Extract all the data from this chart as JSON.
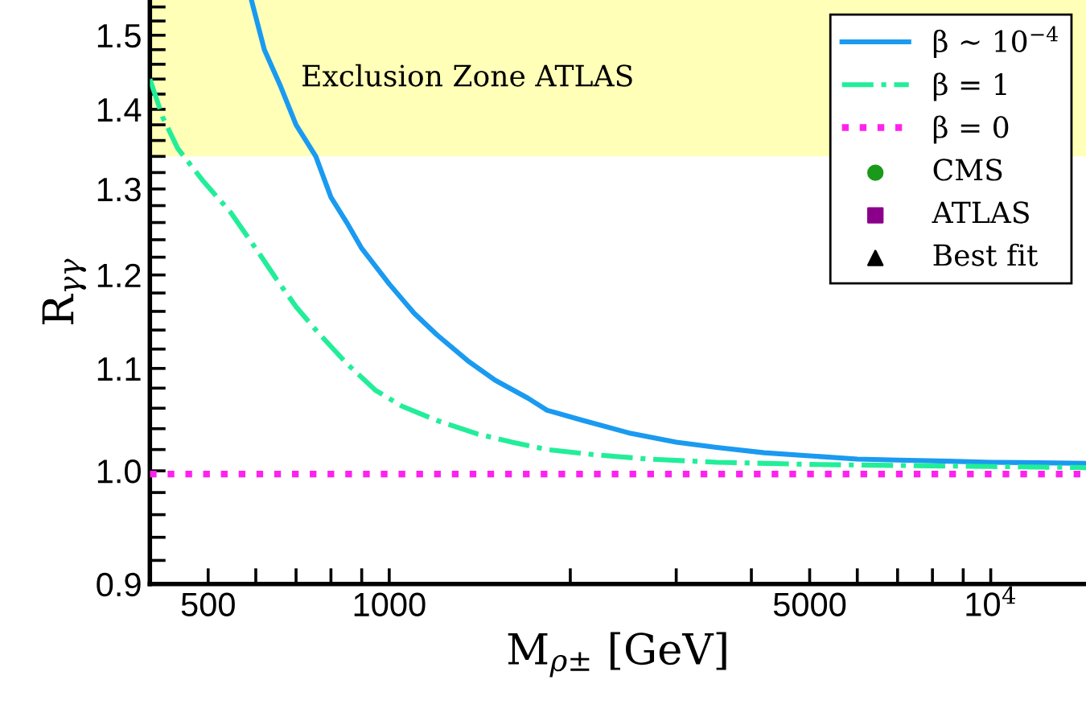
{
  "chart_data": {
    "type": "line",
    "xlabel": "M$_{ρ±}$ [GeV]",
    "ylabel": "R$_{γγ}$",
    "log": "xy",
    "xlim": [
      400,
      14400
    ],
    "ylim": [
      0.9,
      1.55
    ],
    "xticks": [
      500,
      {
        "value": 600,
        "label": null
      },
      {
        "value": 700,
        "label": null
      },
      {
        "value": 800,
        "label": null
      },
      {
        "value": 900,
        "label": null
      },
      1000,
      {
        "value": 2000,
        "label": null
      },
      {
        "value": 3000,
        "label": null
      },
      {
        "value": 4000,
        "label": null
      },
      5000,
      {
        "value": 6000,
        "label": null
      },
      {
        "value": 7000,
        "label": null
      },
      {
        "value": 8000,
        "label": null
      },
      {
        "value": 9000,
        "label": null
      },
      {
        "value": 10000,
        "label": "10$^{4}$"
      }
    ],
    "yticks": [
      {
        "value": 0.9,
        "label": "0.9"
      },
      {
        "value": 0.92,
        "label": null
      },
      {
        "value": 0.94,
        "label": null
      },
      {
        "value": 0.96,
        "label": null
      },
      {
        "value": 0.98,
        "label": null
      },
      {
        "value": 1.0,
        "label": "1.0"
      },
      {
        "value": 1.02,
        "label": null
      },
      {
        "value": 1.04,
        "label": null
      },
      {
        "value": 1.06,
        "label": null
      },
      {
        "value": 1.08,
        "label": null
      },
      1.1,
      {
        "value": 1.12,
        "label": null
      },
      {
        "value": 1.14,
        "label": null
      },
      {
        "value": 1.16,
        "label": null
      },
      {
        "value": 1.18,
        "label": null
      },
      1.2,
      {
        "value": 1.22,
        "label": null
      },
      {
        "value": 1.24,
        "label": null
      },
      {
        "value": 1.26,
        "label": null
      },
      {
        "value": 1.28,
        "label": null
      },
      1.3,
      {
        "value": 1.32,
        "label": null
      },
      {
        "value": 1.34,
        "label": null
      },
      {
        "value": 1.36,
        "label": null
      },
      {
        "value": 1.38,
        "label": null
      },
      1.4,
      {
        "value": 1.42,
        "label": null
      },
      {
        "value": 1.44,
        "label": null
      },
      {
        "value": 1.46,
        "label": null
      },
      {
        "value": 1.48,
        "label": null
      },
      1.5,
      {
        "value": 1.52,
        "label": null
      },
      {
        "value": 1.54,
        "label": null
      }
    ],
    "grid": false,
    "legend": "top right",
    "bands": [
      {
        "axis": "y",
        "from": 1.34,
        "to": 1.55,
        "label": "Exclusion Zone ATLAS",
        "color": "#ffffb3"
      }
    ],
    "series": [
      {
        "name": "β ∼ 10$^{−4}$",
        "color": "#1a9af0",
        "line_style": "solid",
        "x": [
          590,
          620,
          660,
          700,
          755,
          800,
          850,
          900,
          1000,
          1100,
          1200,
          1350,
          1500,
          1700,
          1830,
          2100,
          2500,
          3000,
          3500,
          4200,
          5000,
          6000,
          7000,
          8500,
          10000,
          12000,
          14400
        ],
        "values": [
          1.55,
          1.48,
          1.43,
          1.38,
          1.34,
          1.29,
          1.26,
          1.23,
          1.19,
          1.158,
          1.135,
          1.108,
          1.088,
          1.07,
          1.058,
          1.048,
          1.036,
          1.027,
          1.022,
          1.017,
          1.014,
          1.011,
          1.01,
          1.009,
          1.008,
          1.0075,
          1.007
        ]
      },
      {
        "name": "β = 1",
        "color": "#22ee99",
        "line_style": "dashdot",
        "x": [
          400,
          420,
          445,
          490,
          545,
          600,
          650,
          700,
          760,
          850,
          948,
          1050,
          1200,
          1400,
          1600,
          1830,
          2200,
          2700,
          3500,
          5000,
          7000,
          10000,
          14400
        ],
        "values": [
          1.44,
          1.39,
          1.35,
          1.31,
          1.272,
          1.23,
          1.195,
          1.165,
          1.138,
          1.105,
          1.078,
          1.062,
          1.048,
          1.035,
          1.027,
          1.02,
          1.015,
          1.011,
          1.008,
          1.006,
          1.005,
          1.004,
          1.003
        ]
      },
      {
        "name": "β = 0",
        "color": "#ff22ee",
        "line_style": "dotted",
        "x": [
          400,
          14400
        ],
        "values": [
          0.997,
          0.997
        ]
      },
      {
        "name": "CMS",
        "type": "scatter",
        "color": "#1a9a1a",
        "marker": "circle"
      },
      {
        "name": "ATLAS",
        "type": "scatter",
        "color": "#8b008b",
        "marker": "square"
      },
      {
        "name": "Best fit",
        "type": "scatter",
        "color": "#000000",
        "marker": "triangle"
      }
    ]
  }
}
